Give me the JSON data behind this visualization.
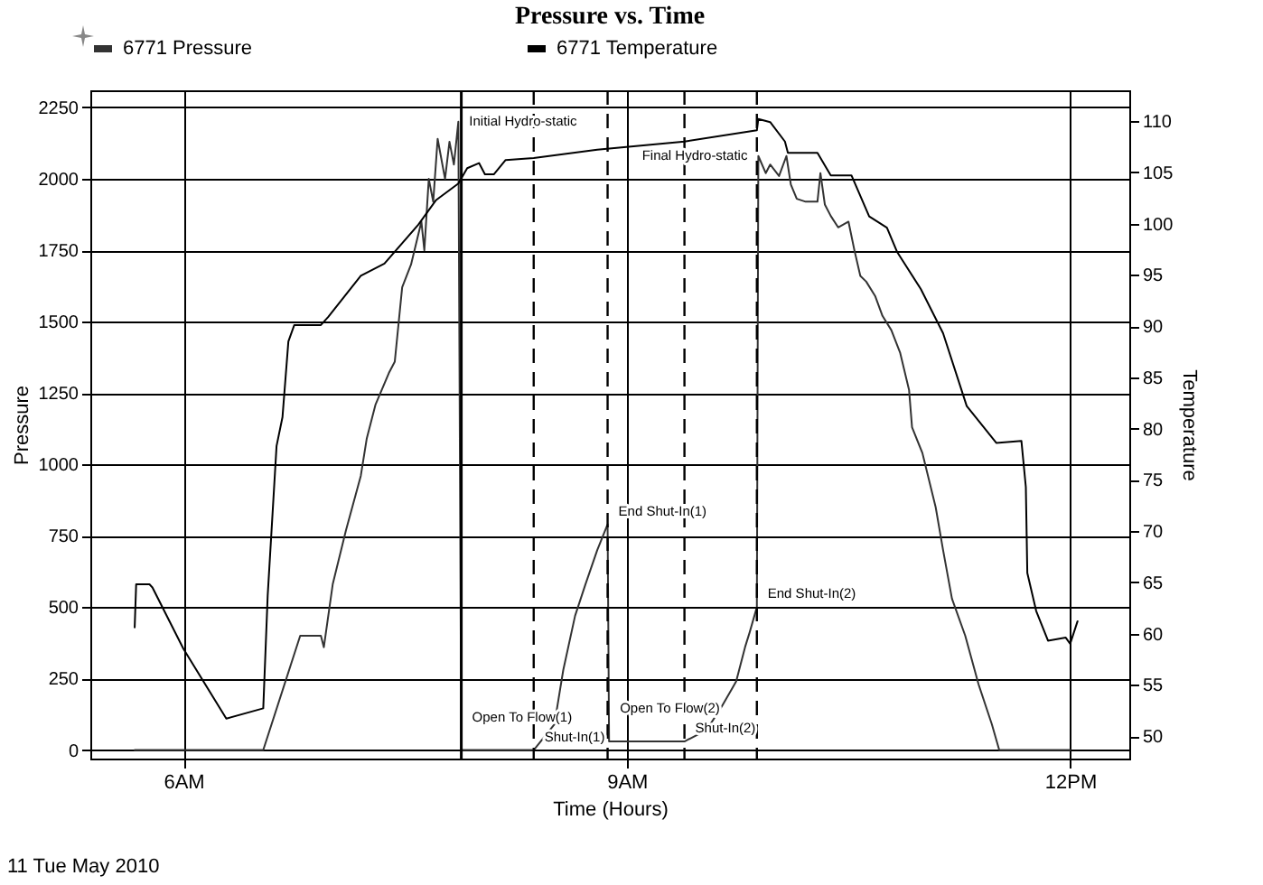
{
  "chart_data": {
    "type": "line",
    "title": "Pressure vs. Time",
    "xlabel": "Time (Hours)",
    "ylabel": "Pressure",
    "y2label": "Temperature",
    "xlim": [
      5.37,
      12.4
    ],
    "xticks": [
      {
        "value": 6,
        "label": "6AM"
      },
      {
        "value": 9,
        "label": "9AM"
      },
      {
        "value": 12,
        "label": "12PM"
      }
    ],
    "ylim": [
      -30,
      2310
    ],
    "yticks": [
      0,
      250,
      500,
      750,
      1000,
      1250,
      1500,
      1750,
      2000,
      2250
    ],
    "y2lim": [
      47.8,
      113
    ],
    "y2ticks": [
      50,
      55,
      60,
      65,
      70,
      75,
      80,
      85,
      90,
      95,
      100,
      105,
      110
    ],
    "grid": true,
    "legend": "top",
    "line_style": "solid",
    "marker": "none",
    "series": [
      {
        "name": "6771 Pressure",
        "color": "#333333",
        "x": [
          5.67,
          6.54,
          6.79,
          6.93,
          6.95,
          7.01,
          7.1,
          7.2,
          7.24,
          7.3,
          7.39,
          7.43,
          7.48,
          7.54,
          7.61,
          7.63,
          7.66,
          7.69,
          7.72,
          7.77,
          7.8,
          7.83,
          7.86,
          7.88,
          8.37,
          8.51,
          8.57,
          8.65,
          8.72,
          8.8,
          8.87,
          8.88,
          9.39,
          9.54,
          9.64,
          9.74,
          9.8,
          9.83,
          9.88,
          9.89,
          9.94,
          9.97,
          10.03,
          10.08,
          10.11,
          10.15,
          10.21,
          10.29,
          10.31,
          10.34,
          10.38,
          10.43,
          10.5,
          10.54,
          10.58,
          10.62,
          10.68,
          10.73,
          10.79,
          10.85,
          10.91,
          10.93,
          11.0,
          11.09,
          11.14,
          11.2,
          11.29,
          11.38,
          11.47,
          11.52,
          12.0
        ],
        "values": [
          0,
          0,
          400,
          400,
          360,
          580,
          770,
          960,
          1090,
          1210,
          1320,
          1360,
          1620,
          1700,
          1850,
          1750,
          2000,
          1920,
          2140,
          2000,
          2130,
          2050,
          2200,
          0,
          0,
          90,
          280,
          470,
          580,
          700,
          790,
          30,
          30,
          70,
          150,
          240,
          360,
          410,
          500,
          2080,
          2020,
          2050,
          2010,
          2080,
          1980,
          1930,
          1920,
          1920,
          2020,
          1910,
          1870,
          1830,
          1850,
          1750,
          1660,
          1640,
          1590,
          1520,
          1470,
          1390,
          1260,
          1130,
          1040,
          850,
          700,
          530,
          400,
          230,
          90,
          0,
          0
        ]
      },
      {
        "name": "6771 Temperature",
        "color": "#000000",
        "axis": "y2",
        "x": [
          5.67,
          5.68,
          5.77,
          5.79,
          6.0,
          6.29,
          6.54,
          6.57,
          6.63,
          6.67,
          6.71,
          6.75,
          6.93,
          6.98,
          7.2,
          7.36,
          7.59,
          7.71,
          7.86,
          7.92,
          8.0,
          8.04,
          8.1,
          8.18,
          8.37,
          8.8,
          9.39,
          9.88,
          9.89,
          9.97,
          10.07,
          10.09,
          10.29,
          10.38,
          10.52,
          10.64,
          10.76,
          10.83,
          10.99,
          11.14,
          11.3,
          11.5,
          11.67,
          11.7,
          11.71,
          11.77,
          11.85,
          11.97,
          12.0,
          12.05
        ],
        "values": [
          60.6,
          64.8,
          64.8,
          64.5,
          58.5,
          51.7,
          52.7,
          63.7,
          78.3,
          81.1,
          88.5,
          90.1,
          90.1,
          90.9,
          94.9,
          96.1,
          99.9,
          102.3,
          103.9,
          105.4,
          105.9,
          104.8,
          104.8,
          106.2,
          106.4,
          107.2,
          108.0,
          109.1,
          110.2,
          109.9,
          108.0,
          106.9,
          106.9,
          104.7,
          104.7,
          100.7,
          99.6,
          97.2,
          93.6,
          89.3,
          82.2,
          78.6,
          78.8,
          74.3,
          65.9,
          62.2,
          59.3,
          59.6,
          59.0,
          61.2
        ]
      }
    ],
    "ref_lines": [
      {
        "axis": "x",
        "value": 7.88,
        "line_style": "solid"
      },
      {
        "axis": "x",
        "value": 8.37,
        "line_style": "dashed"
      },
      {
        "axis": "x",
        "value": 8.87,
        "line_style": "dashed"
      },
      {
        "axis": "x",
        "value": 9.39,
        "line_style": "dashed"
      },
      {
        "axis": "x",
        "value": 9.88,
        "line_style": "dashed"
      }
    ],
    "annotations": [
      {
        "text": "Initial Hydro-static",
        "x": 7.86,
        "y": 2200
      },
      {
        "text": "Final Hydro-static",
        "x": 9.89,
        "y": 2080
      },
      {
        "text": "End Shut-In(1)",
        "x": 8.87,
        "y": 790
      },
      {
        "text": "End Shut-In(2)",
        "x": 9.88,
        "y": 500
      },
      {
        "text": "Open To Flow(1)",
        "x": 7.88,
        "y": 0
      },
      {
        "text": "Shut-In(1)",
        "x": 8.37,
        "y": 0
      },
      {
        "text": "Open To Flow(2)",
        "x": 8.88,
        "y": 30
      },
      {
        "text": "Shut-In(2)",
        "x": 9.39,
        "y": 30
      },
      "11 Tue May 2010"
    ]
  }
}
